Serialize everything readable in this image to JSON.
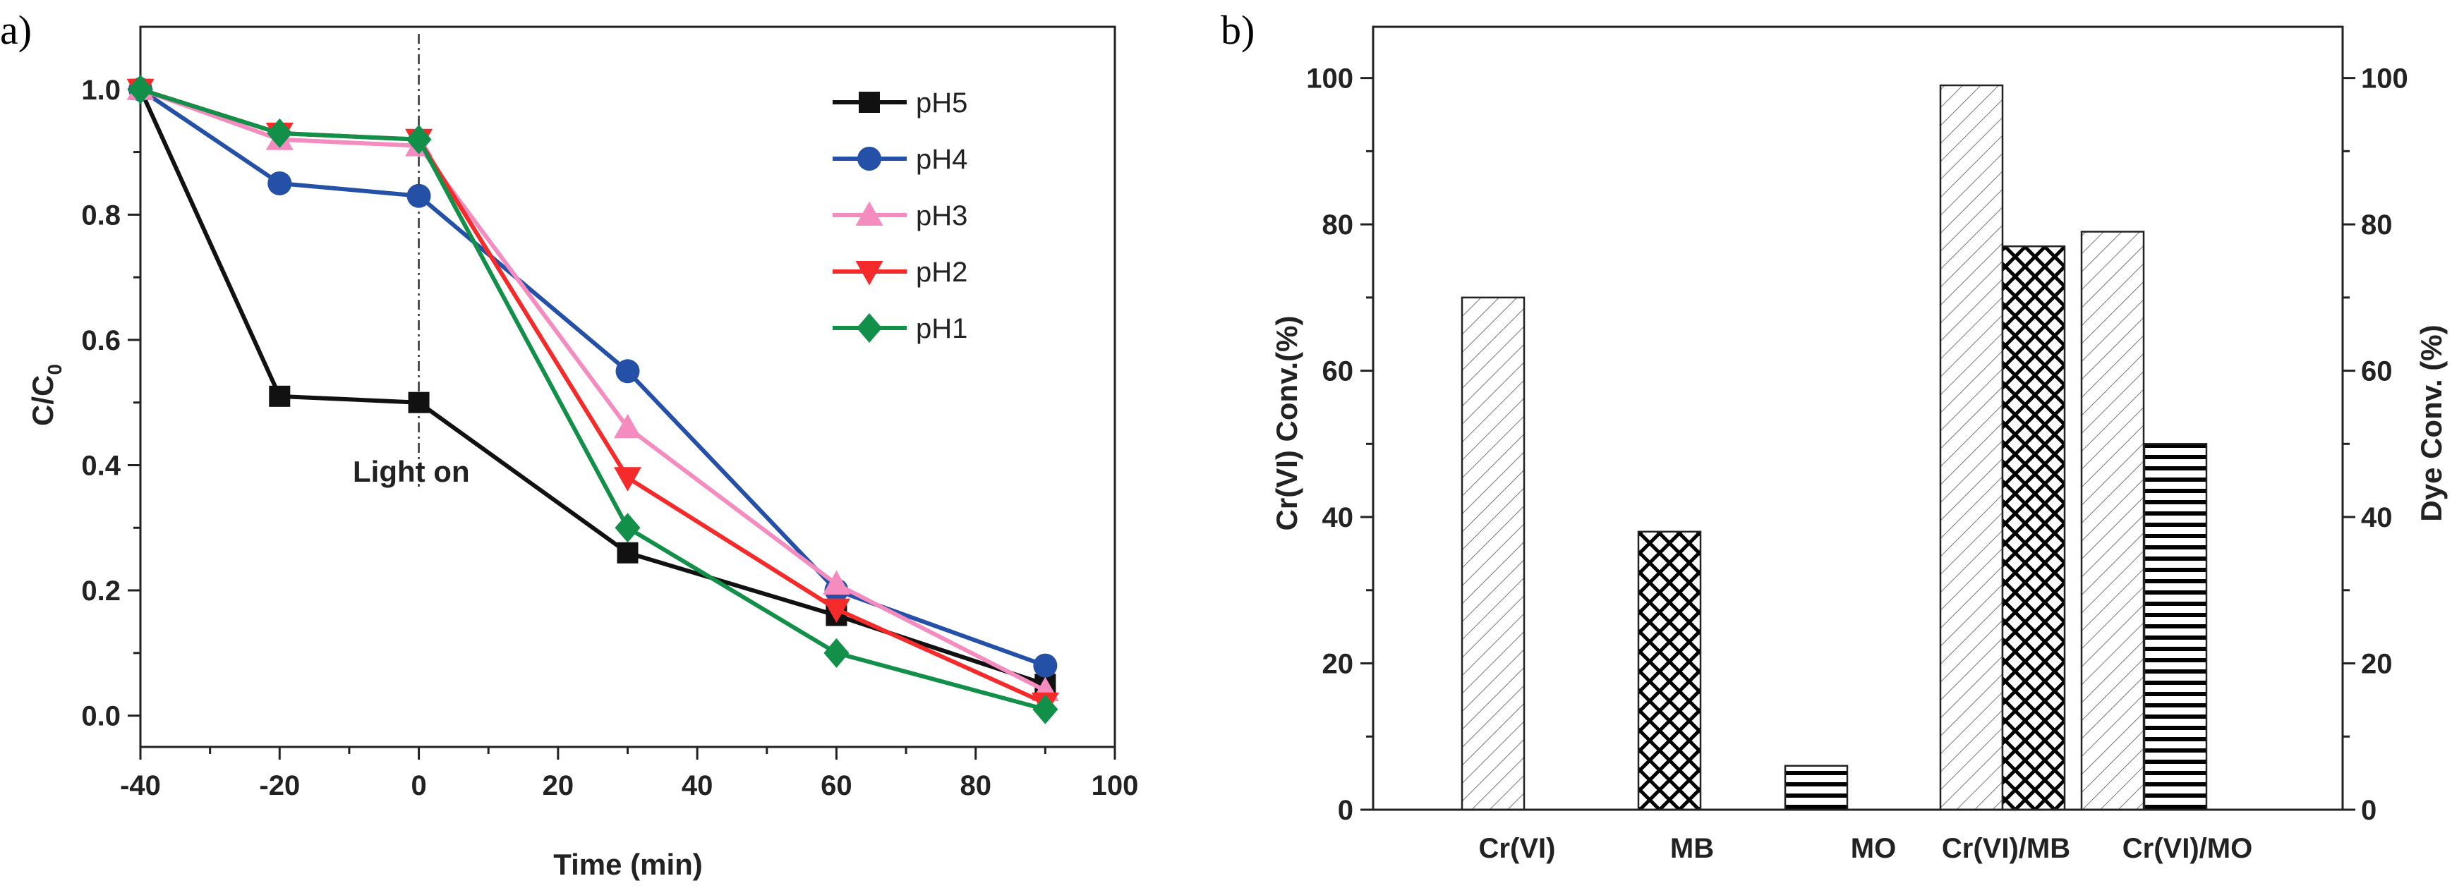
{
  "chart_data": [
    {
      "panel": "a)",
      "type": "line",
      "xlabel": "Time (min)",
      "ylabel": "C/C",
      "ylabel_sub": "0",
      "xlim": [
        -40,
        100
      ],
      "ylim": [
        -0.05,
        1.1
      ],
      "xticks": [
        "-40",
        "-20",
        "0",
        "20",
        "40",
        "60",
        "80",
        "100"
      ],
      "yticks": [
        "0.0",
        "0.2",
        "0.4",
        "0.6",
        "0.8",
        "1.0"
      ],
      "annotation": "Light on",
      "annotation_x": 0,
      "legend_position": "top-right",
      "x": [
        -40,
        -20,
        0,
        30,
        60,
        90
      ],
      "series": [
        {
          "name": "pH5",
          "marker": "square",
          "color": "#111111",
          "values": [
            1.0,
            0.51,
            0.5,
            0.26,
            0.16,
            0.05
          ]
        },
        {
          "name": "pH4",
          "marker": "circle",
          "color": "#2450a8",
          "values": [
            1.0,
            0.85,
            0.83,
            0.55,
            0.2,
            0.08
          ]
        },
        {
          "name": "pH3",
          "marker": "triangle-up",
          "color": "#f48cbf",
          "values": [
            1.0,
            0.92,
            0.91,
            0.46,
            0.21,
            0.04
          ]
        },
        {
          "name": "pH2",
          "marker": "triangle-down",
          "color": "#f52a2a",
          "values": [
            1.0,
            0.93,
            0.92,
            0.38,
            0.17,
            0.02
          ]
        },
        {
          "name": "pH1",
          "marker": "diamond",
          "color": "#12904a",
          "values": [
            1.0,
            0.93,
            0.92,
            0.3,
            0.1,
            0.01
          ]
        }
      ]
    },
    {
      "panel": "b)",
      "type": "bar",
      "ylabel": "Cr(VI) Conv.(%)",
      "ylabel_right": "Dye Conv. (%)",
      "ylim": [
        0,
        107
      ],
      "yticks": [
        "0",
        "20",
        "40",
        "60",
        "80",
        "100"
      ],
      "categories": [
        "Cr(VI)",
        "MB",
        "MO",
        "Cr(VI)/MB",
        "Cr(VI)/MO"
      ],
      "bars": [
        {
          "category": "Cr(VI)",
          "series": "Cr(VI)",
          "pattern": "diagonal",
          "value": 70
        },
        {
          "category": "MB",
          "series": "MB",
          "pattern": "crosshatch",
          "value": 38
        },
        {
          "category": "MO",
          "series": "MO",
          "pattern": "horizontal",
          "value": 6
        },
        {
          "category": "Cr(VI)/MB",
          "series": "Cr(VI)",
          "pattern": "diagonal",
          "value": 99
        },
        {
          "category": "Cr(VI)/MB",
          "series": "MB",
          "pattern": "crosshatch",
          "value": 77
        },
        {
          "category": "Cr(VI)/MO",
          "series": "Cr(VI)",
          "pattern": "diagonal",
          "value": 79
        },
        {
          "category": "Cr(VI)/MO",
          "series": "MO",
          "pattern": "horizontal",
          "value": 50
        }
      ]
    }
  ]
}
